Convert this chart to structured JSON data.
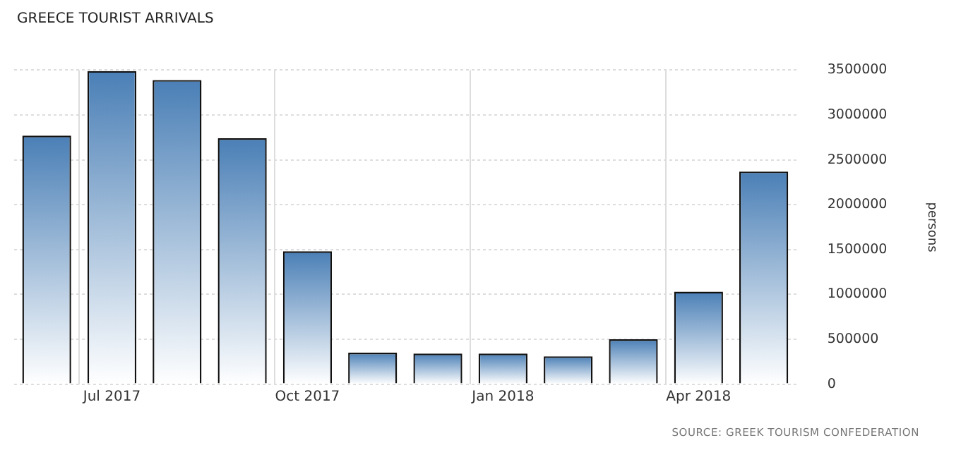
{
  "chart_data": {
    "type": "bar",
    "title": "GREECE TOURIST ARRIVALS",
    "ylabel": "persons",
    "categories": [
      null,
      "Jul 2017",
      null,
      null,
      "Oct 2017",
      null,
      null,
      "Jan 2018",
      null,
      null,
      "Apr 2018",
      null
    ],
    "values": [
      2770000,
      3490000,
      3390000,
      2740000,
      1480000,
      350000,
      340000,
      340000,
      310000,
      500000,
      1030000,
      2370000
    ],
    "color": "#4a7fb6",
    "ylim": [
      0,
      3500000
    ],
    "yticks": [
      0,
      500000,
      1000000,
      1500000,
      2000000,
      2500000,
      3000000,
      3500000
    ],
    "grid": true,
    "legend": false,
    "annotations": [
      "SOURCE: GREEK TOURISM CONFEDERATION"
    ]
  }
}
